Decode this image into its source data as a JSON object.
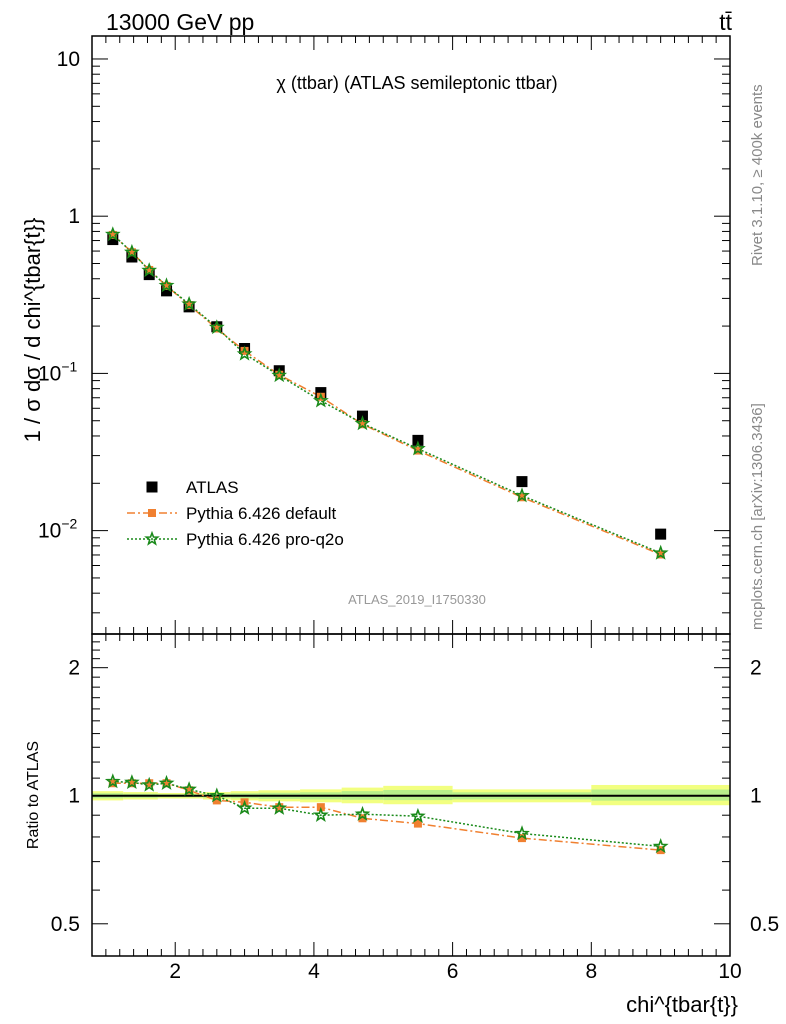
{
  "header": {
    "energy_label": "13000 GeV pp",
    "process_label": "tt̄"
  },
  "side_labels": {
    "rivet": "Rivet 3.1.10, ≥ 400k events",
    "mcplots": "mcplots.cern.ch [arXiv:1306.3436]"
  },
  "chart_data": [
    {
      "type": "scatter",
      "panel": "main",
      "title": "χ (ttbar) (ATLAS semileptonic ttbar)",
      "watermark": "ATLAS_2019_I1750330",
      "ylabel": "1 / σ dσ / d chi^{tbar{t}}",
      "yscale": "log",
      "ylim": [
        0.0022,
        14
      ],
      "xlim": [
        0.8,
        10
      ],
      "y_ticks": [
        {
          "value": 0.01,
          "base": "10",
          "exp": "−2"
        },
        {
          "value": 0.1,
          "base": "10",
          "exp": "−1"
        },
        {
          "value": 1,
          "base": "1",
          "exp": ""
        },
        {
          "value": 10,
          "base": "10",
          "exp": ""
        }
      ],
      "legend_position": "bottom-left",
      "x": [
        1.1,
        1.375,
        1.625,
        1.875,
        2.2,
        2.6,
        3.0,
        3.5,
        4.1,
        4.7,
        5.5,
        7.0,
        9.0
      ],
      "series": [
        {
          "name": "ATLAS",
          "color": "#000000",
          "marker": "square",
          "values": [
            0.71,
            0.55,
            0.425,
            0.335,
            0.265,
            0.198,
            0.144,
            0.104,
            0.0755,
            0.0535,
            0.0375,
            0.0205,
            0.0095
          ]
        },
        {
          "name": "Pythia 6.426 default",
          "color": "#f08030",
          "marker": "square",
          "line": "dashdot",
          "values": [
            0.76,
            0.59,
            0.455,
            0.36,
            0.272,
            0.193,
            0.139,
            0.098,
            0.071,
            0.0475,
            0.0323,
            0.0163,
            0.00705
          ]
        },
        {
          "name": "Pythia 6.426 pro-q2o",
          "color": "#1a8a1a",
          "marker": "star",
          "line": "dotted",
          "values": [
            0.765,
            0.59,
            0.452,
            0.362,
            0.276,
            0.196,
            0.133,
            0.097,
            0.067,
            0.048,
            0.0332,
            0.0167,
            0.0072
          ]
        }
      ]
    },
    {
      "type": "scatter",
      "panel": "ratio",
      "ylabel": "Ratio to ATLAS",
      "xlabel": "chi^{tbar{t}}",
      "yscale": "log",
      "ylim": [
        0.42,
        2.4
      ],
      "xlim": [
        0.8,
        10
      ],
      "x_ticks": [
        2,
        4,
        6,
        8,
        10
      ],
      "y_ticks": [
        0.5,
        1,
        2
      ],
      "reference_line": 1,
      "band_segments": [
        {
          "x0": 0.8,
          "x1": 1.25,
          "lo": 0.975,
          "hi": 1.025
        },
        {
          "x0": 1.25,
          "x1": 1.75,
          "lo": 0.98,
          "hi": 1.02
        },
        {
          "x0": 1.75,
          "x1": 2.4,
          "lo": 0.985,
          "hi": 1.015
        },
        {
          "x0": 2.4,
          "x1": 2.8,
          "lo": 0.98,
          "hi": 1.02
        },
        {
          "x0": 2.8,
          "x1": 3.2,
          "lo": 0.975,
          "hi": 1.025
        },
        {
          "x0": 3.2,
          "x1": 3.8,
          "lo": 0.97,
          "hi": 1.03
        },
        {
          "x0": 3.8,
          "x1": 4.4,
          "lo": 0.965,
          "hi": 1.035
        },
        {
          "x0": 4.4,
          "x1": 5.0,
          "lo": 0.96,
          "hi": 1.045
        },
        {
          "x0": 5.0,
          "x1": 6.0,
          "lo": 0.955,
          "hi": 1.055
        },
        {
          "x0": 6.0,
          "x1": 8.0,
          "lo": 0.965,
          "hi": 1.035
        },
        {
          "x0": 8.0,
          "x1": 10.0,
          "lo": 0.95,
          "hi": 1.06
        }
      ],
      "x": [
        1.1,
        1.375,
        1.625,
        1.875,
        2.2,
        2.6,
        3.0,
        3.5,
        4.1,
        4.7,
        5.5,
        7.0,
        9.0
      ],
      "series": [
        {
          "name": "Pythia 6.426 default",
          "color": "#f08030",
          "marker": "square",
          "line": "dashdot",
          "values": [
            1.07,
            1.07,
            1.07,
            1.07,
            1.03,
            0.975,
            0.965,
            0.94,
            0.94,
            0.885,
            0.86,
            0.795,
            0.745
          ]
        },
        {
          "name": "Pythia 6.426 pro-q2o",
          "color": "#1a8a1a",
          "marker": "star",
          "line": "dotted",
          "values": [
            1.08,
            1.075,
            1.06,
            1.07,
            1.035,
            1.0,
            0.935,
            0.935,
            0.9,
            0.905,
            0.895,
            0.815,
            0.76
          ]
        }
      ]
    }
  ]
}
